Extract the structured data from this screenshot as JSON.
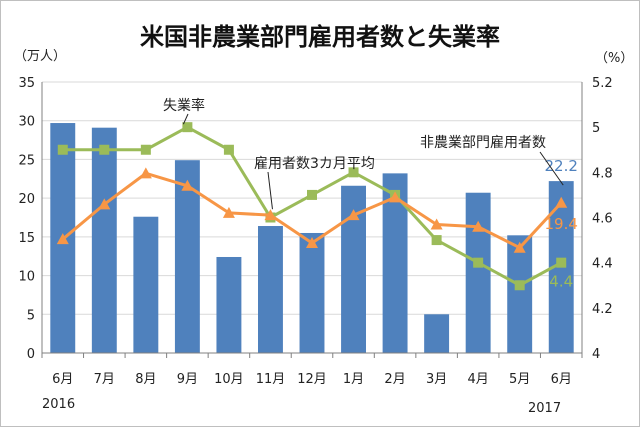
{
  "chart_data": {
    "type": "bar+line",
    "title": "米国非農業部門雇用者数と失業率",
    "left_axis_unit": "（万人）",
    "right_axis_unit": "（%）",
    "categories": [
      "6月",
      "7月",
      "8月",
      "9月",
      "10月",
      "11月",
      "12月",
      "1月",
      "2月",
      "3月",
      "4月",
      "5月",
      "6月"
    ],
    "year_labels": {
      "start": "2016",
      "end": "2017"
    },
    "left_ylim": [
      0,
      35
    ],
    "left_ticks": [
      "0",
      "5",
      "10",
      "15",
      "20",
      "25",
      "30",
      "35"
    ],
    "right_ylim": [
      4,
      5.2
    ],
    "right_ticks": [
      "4",
      "4.2",
      "4.4",
      "4.6",
      "4.8",
      "5",
      "5.2"
    ],
    "grid": true,
    "colors": {
      "bars": "#4f81bd",
      "unemployment": "#9bbb59",
      "avg3m": "#f79646"
    },
    "series": [
      {
        "name": "非農業部門雇用者数",
        "axis": "left",
        "type": "bar",
        "values": [
          29.7,
          29.1,
          17.6,
          24.9,
          12.4,
          16.4,
          15.5,
          21.6,
          23.2,
          5.0,
          20.7,
          15.2,
          22.2
        ]
      },
      {
        "name": "失業率",
        "axis": "right",
        "type": "line",
        "values": [
          4.9,
          4.9,
          4.9,
          5.0,
          4.9,
          4.6,
          4.7,
          4.8,
          4.7,
          4.5,
          4.4,
          4.3,
          4.4
        ]
      },
      {
        "name": "雇用者数3カ月平均",
        "axis": "left",
        "type": "line",
        "values": [
          14.7,
          19.2,
          23.2,
          21.6,
          18.1,
          17.8,
          14.2,
          17.8,
          20.1,
          16.6,
          16.3,
          13.6,
          19.4
        ]
      }
    ],
    "data_labels": {
      "bars_last": "22.2",
      "avg3m_last": "19.4",
      "unemployment_last": "4.4"
    }
  }
}
